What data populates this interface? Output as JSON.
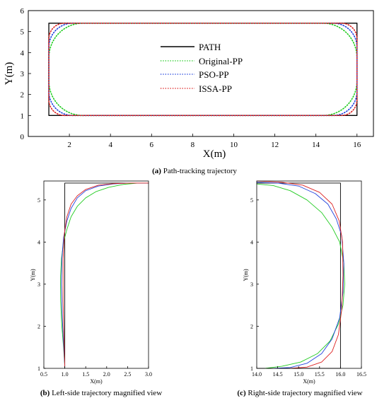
{
  "chart_data": [
    {
      "type": "line",
      "caption": {
        "letter": "(a)",
        "text": " Path-tracking trajectory"
      },
      "xlabel": "X(m)",
      "ylabel": "Y(m)",
      "xlim": [
        0,
        16.8
      ],
      "ylim": [
        0,
        6
      ],
      "xticks": [
        2,
        4,
        6,
        8,
        10,
        12,
        14,
        16
      ],
      "yticks": [
        0,
        1,
        2,
        3,
        4,
        5,
        6
      ],
      "legend": {
        "placement": "center",
        "labels": [
          "PATH",
          "Original-PP",
          "PSO-PP",
          "ISSA-PP"
        ]
      },
      "series": [
        {
          "name": "PATH",
          "color": "#000000",
          "style": "solid",
          "x": [
            1,
            16,
            16,
            1,
            1
          ],
          "y": [
            1,
            1,
            5.4,
            5.4,
            1
          ]
        },
        {
          "name": "Original-PP",
          "color": "#22cc22",
          "style": "dotted",
          "r": 1.65
        },
        {
          "name": "PSO-PP",
          "color": "#2244dd",
          "style": "dotted",
          "r": 1.15
        },
        {
          "name": "ISSA-PP",
          "color": "#dd2222",
          "style": "dotted",
          "r": 0.75
        }
      ]
    },
    {
      "type": "line",
      "caption": {
        "letter": "(b)",
        "text": " Left-side trajectory magnified view"
      },
      "xlabel": "X(m)",
      "ylabel": "Y(m)",
      "xlim": [
        0.5,
        3.0
      ],
      "ylim": [
        1,
        5.45
      ],
      "xticks": [
        0.5,
        1.0,
        1.5,
        2.0,
        2.5,
        3.0
      ],
      "yticks": [
        1,
        2,
        3,
        4,
        5
      ],
      "series": [
        {
          "name": "PATH",
          "color": "#000000",
          "x": [
            1,
            1,
            3
          ],
          "y": [
            1,
            5.4,
            5.4
          ]
        },
        {
          "name": "Original-PP",
          "color": "#22cc22",
          "x": [
            1.0,
            0.97,
            0.93,
            0.9,
            0.9,
            0.92,
            0.97,
            1.05,
            1.15,
            1.3,
            1.5,
            1.75,
            2.05,
            2.4,
            2.75,
            3.0
          ],
          "y": [
            1.05,
            1.5,
            2.0,
            2.6,
            3.2,
            3.6,
            4.0,
            4.3,
            4.6,
            4.85,
            5.05,
            5.2,
            5.3,
            5.37,
            5.4,
            5.4
          ]
        },
        {
          "name": "PSO-PP",
          "color": "#2244dd",
          "x": [
            1.0,
            0.97,
            0.94,
            0.92,
            0.93,
            0.97,
            1.05,
            1.15,
            1.3,
            1.5,
            1.8,
            2.15,
            2.5,
            2.8,
            3.0
          ],
          "y": [
            1.05,
            1.6,
            2.2,
            3.0,
            3.6,
            4.1,
            4.5,
            4.8,
            5.05,
            5.22,
            5.33,
            5.38,
            5.4,
            5.4,
            5.4
          ]
        },
        {
          "name": "ISSA-PP",
          "color": "#dd2222",
          "x": [
            1.0,
            0.98,
            0.96,
            0.96,
            0.99,
            1.05,
            1.15,
            1.3,
            1.5,
            1.8,
            2.2,
            2.6,
            3.0
          ],
          "y": [
            1.05,
            1.7,
            2.6,
            3.6,
            4.2,
            4.6,
            4.9,
            5.1,
            5.25,
            5.35,
            5.39,
            5.4,
            5.4
          ]
        }
      ]
    },
    {
      "type": "line",
      "caption": {
        "letter": "(c)",
        "text": " Right-side trajectory magnified view"
      },
      "xlabel": "X(m)",
      "ylabel": "Y(m)",
      "xlim": [
        14.0,
        16.5
      ],
      "ylim": [
        1,
        5.45
      ],
      "xticks": [
        14.0,
        14.5,
        15.0,
        15.5,
        16.0,
        16.5
      ],
      "yticks": [
        1,
        2,
        3,
        4,
        5
      ],
      "series": [
        {
          "name": "PATH",
          "color": "#000000",
          "x": [
            14,
            16,
            16,
            14
          ],
          "y": [
            5.4,
            5.4,
            1,
            1
          ]
        },
        {
          "name": "Original-PP",
          "color": "#22cc22",
          "x": [
            14.0,
            14.4,
            14.8,
            15.2,
            15.55,
            15.8,
            15.98,
            16.08,
            16.1,
            16.06,
            15.95,
            15.75,
            15.45,
            15.05,
            14.6,
            14.2
          ],
          "y": [
            5.38,
            5.34,
            5.22,
            5.0,
            4.7,
            4.35,
            4.0,
            3.5,
            3.0,
            2.5,
            2.05,
            1.65,
            1.35,
            1.15,
            1.05,
            1.0
          ]
        },
        {
          "name": "PSO-PP",
          "color": "#2244dd",
          "x": [
            14.0,
            14.5,
            15.0,
            15.4,
            15.7,
            15.9,
            16.03,
            16.08,
            16.06,
            15.98,
            15.8,
            15.55,
            15.2,
            14.8,
            14.4
          ],
          "y": [
            5.42,
            5.4,
            5.33,
            5.15,
            4.9,
            4.55,
            4.15,
            3.5,
            2.8,
            2.2,
            1.7,
            1.35,
            1.12,
            1.02,
            1.0
          ]
        },
        {
          "name": "ISSA-PP",
          "color": "#dd2222",
          "x": [
            14.0,
            14.6,
            15.1,
            15.5,
            15.8,
            15.97,
            16.05,
            16.06,
            16.03,
            15.95,
            15.8,
            15.55,
            15.2,
            14.8
          ],
          "y": [
            5.45,
            5.42,
            5.35,
            5.18,
            4.9,
            4.5,
            4.0,
            3.2,
            2.4,
            1.8,
            1.4,
            1.15,
            1.03,
            1.0
          ]
        }
      ]
    }
  ]
}
